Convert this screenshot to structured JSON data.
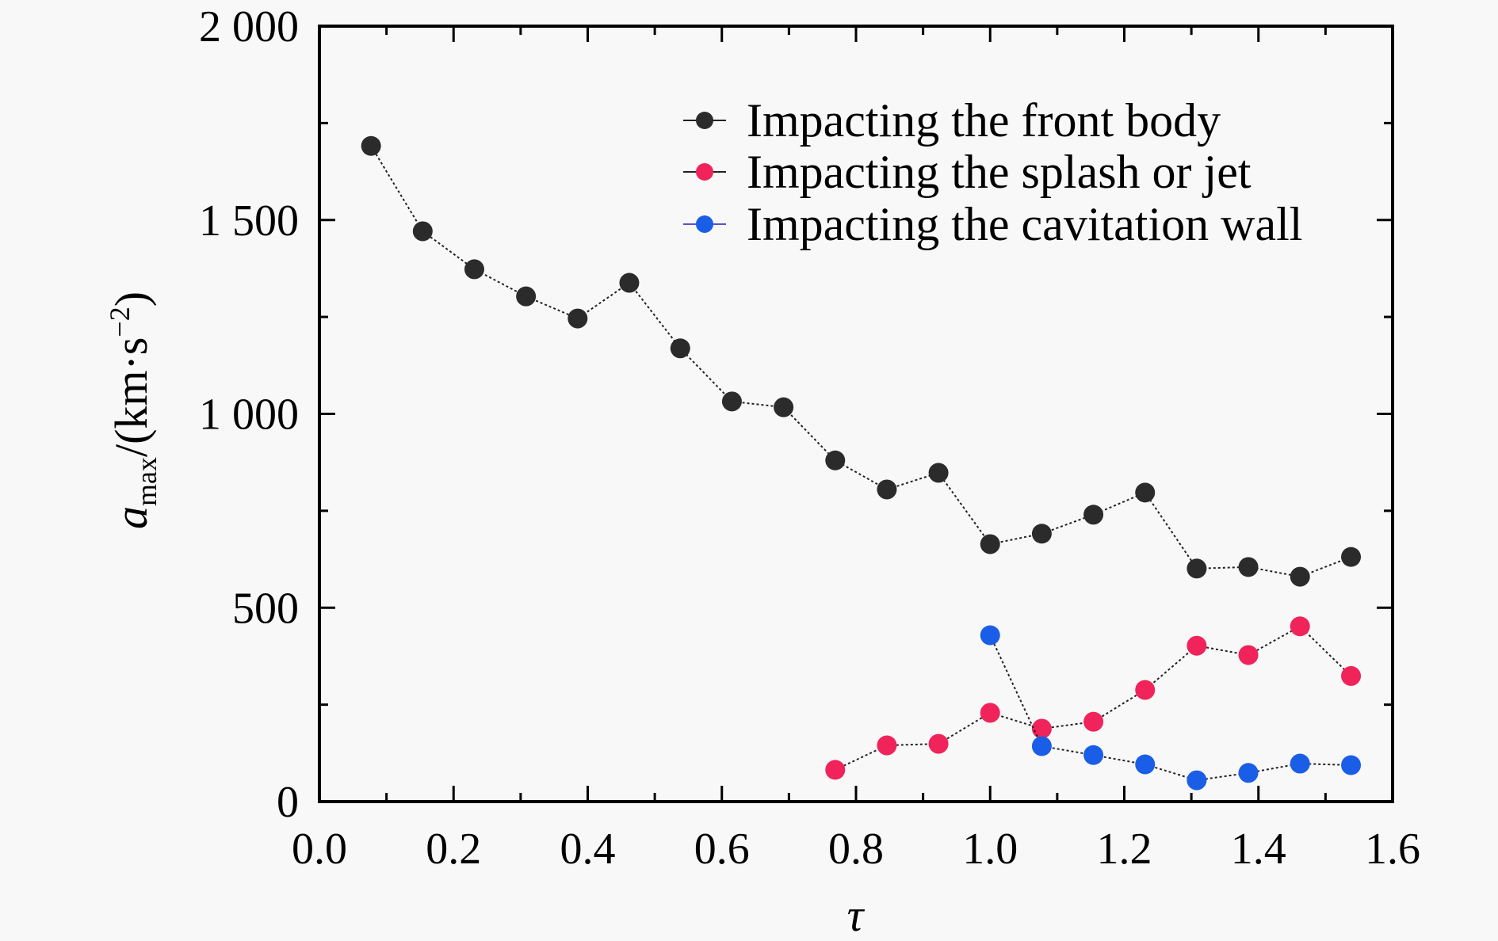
{
  "chart_data": {
    "type": "line",
    "title": "",
    "xlabel": "τ",
    "ylabel": {
      "symbol": "a",
      "subscript": "max",
      "unit_prefix": "/(km·s",
      "unit_superscript": "−2",
      "unit_suffix": ")"
    },
    "xlim": [
      0.0,
      1.6
    ],
    "ylim": [
      0,
      2000
    ],
    "x_ticks": [
      0.0,
      0.2,
      0.4,
      0.6,
      0.8,
      1.0,
      1.2,
      1.4,
      1.6
    ],
    "x_tick_labels": [
      "0.0",
      "0.2",
      "0.4",
      "0.6",
      "0.8",
      "1.0",
      "1.2",
      "1.4",
      "1.6"
    ],
    "x_minor_step": 0.1,
    "y_ticks": [
      0,
      500,
      1000,
      1500,
      2000
    ],
    "y_tick_labels": [
      "0",
      "500",
      "1 000",
      "1 500",
      "2 000"
    ],
    "y_minor_step": 250,
    "grid": false,
    "legend_position": "top-right",
    "series": [
      {
        "name": "Impacting the front body",
        "color": "#2b2b2b",
        "x": [
          0.077,
          0.154,
          0.231,
          0.308,
          0.385,
          0.462,
          0.538,
          0.615,
          0.692,
          0.769,
          0.846,
          0.923,
          1.0,
          1.077,
          1.154,
          1.231,
          1.308,
          1.385,
          1.462,
          1.538
        ],
        "y": [
          1691,
          1471,
          1373,
          1303,
          1246,
          1338,
          1169,
          1032,
          1017,
          880,
          805,
          848,
          664,
          691,
          740,
          797,
          601,
          605,
          580,
          631
        ]
      },
      {
        "name": "Impacting the splash or jet",
        "color": "#f0245a",
        "x": [
          0.769,
          0.846,
          0.923,
          1.0,
          1.077,
          1.154,
          1.231,
          1.308,
          1.385,
          1.462,
          1.538
        ],
        "y": [
          82,
          145,
          149,
          229,
          188,
          206,
          288,
          402,
          378,
          452,
          324
        ]
      },
      {
        "name": "Impacting the cavitation wall",
        "color": "#1a5ee8",
        "x": [
          1.0,
          1.077,
          1.154,
          1.231,
          1.308,
          1.385,
          1.462,
          1.538
        ],
        "y": [
          429,
          143,
          120,
          96,
          55,
          74,
          98,
          94
        ]
      }
    ]
  }
}
